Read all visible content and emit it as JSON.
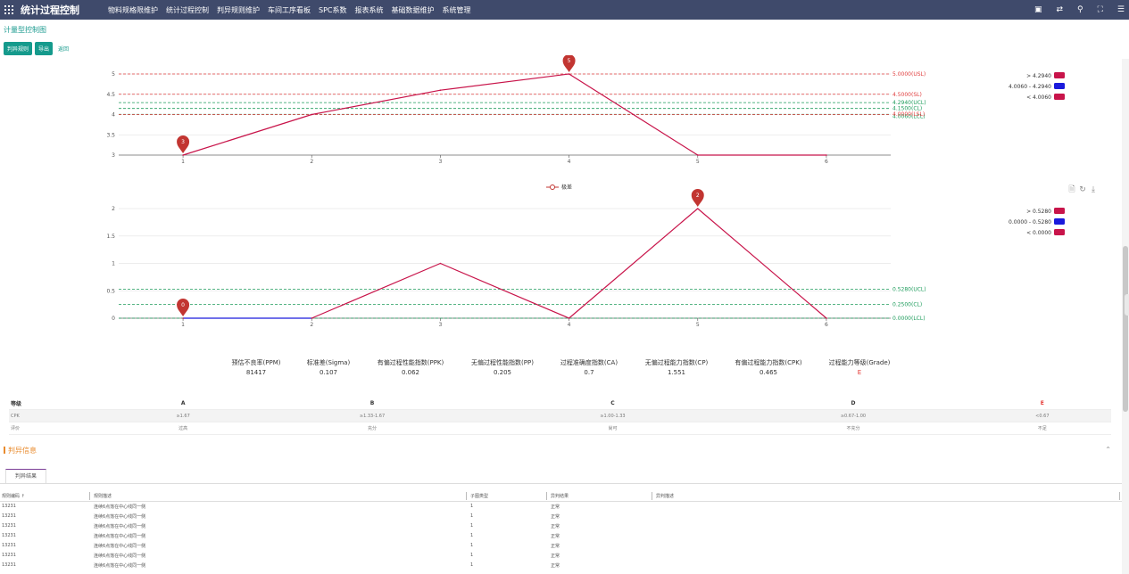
{
  "header": {
    "app_title": "统计过程控制",
    "menu": [
      "物料规格限维护",
      "统计过程控制",
      "判异规则维护",
      "车间工序看板",
      "SPC系数",
      "报表系统",
      "基础数据维护",
      "系统管理"
    ],
    "icons": [
      "layout-icon",
      "swap-icon",
      "search-icon",
      "fullscreen-icon",
      "menu-icon"
    ]
  },
  "page": {
    "title": "计量型控制图",
    "buttons": [
      "判异规则",
      "导出"
    ],
    "back_label": "返回"
  },
  "chart_data": [
    {
      "type": "line",
      "x": [
        1,
        2,
        3,
        4,
        5,
        6
      ],
      "y": [
        3,
        4,
        4.6,
        5,
        3,
        3
      ],
      "ylim": [
        3,
        5
      ],
      "yticks": [
        3,
        3.5,
        4,
        4.5,
        5
      ],
      "reference_lines": [
        {
          "label": "5.0000(USL)",
          "value": 5.0,
          "color": "#e03e3e"
        },
        {
          "label": "4.5000(SL)",
          "value": 4.5,
          "color": "#e03e3e"
        },
        {
          "label": "4.2940(UCL)",
          "value": 4.294,
          "color": "#1e9c5c"
        },
        {
          "label": "4.1500(CL)",
          "value": 4.15,
          "color": "#1e9c5c"
        },
        {
          "label": "4.0060(LCL)",
          "value": 4.006,
          "color": "#1e9c5c"
        },
        {
          "label": "4.0000(LSL)",
          "value": 4.0,
          "color": "#e03e3e"
        }
      ],
      "markers": [
        {
          "x": 1,
          "label": "3"
        },
        {
          "x": 4,
          "label": "5"
        }
      ],
      "legend": [
        {
          "label": "> 4.2940",
          "color": "#c8144a"
        },
        {
          "label": "4.0060 - 4.2940",
          "color": "#1a1adc"
        },
        {
          "label": "< 4.0060",
          "color": "#c8144a"
        }
      ]
    },
    {
      "type": "line",
      "series_name": "极差",
      "x": [
        1,
        2,
        3,
        4,
        5,
        6
      ],
      "y": [
        0,
        0,
        1,
        0,
        2,
        0
      ],
      "ylim": [
        0,
        2
      ],
      "yticks": [
        0,
        0.5,
        1,
        1.5,
        2
      ],
      "reference_lines": [
        {
          "label": "0.5280(UCL)",
          "value": 0.528,
          "color": "#1e9c5c"
        },
        {
          "label": "0.2500(CL)",
          "value": 0.25,
          "color": "#1e9c5c"
        },
        {
          "label": "0.0000(LCL)",
          "value": 0.0,
          "color": "#1e9c5c"
        }
      ],
      "markers": [
        {
          "x": 1,
          "label": "0"
        },
        {
          "x": 5,
          "label": "2"
        }
      ],
      "legend": [
        {
          "label": "> 0.5280",
          "color": "#c8144a"
        },
        {
          "label": "0.0000 - 0.5280",
          "color": "#1a1adc"
        },
        {
          "label": "< 0.0000",
          "color": "#c8144a"
        }
      ],
      "toolbox": [
        "data-view-icon",
        "refresh-icon",
        "download-icon"
      ]
    }
  ],
  "stats": [
    {
      "label": "预估不良率(PPM)",
      "value": "81417"
    },
    {
      "label": "标准差(Sigma)",
      "value": "0.107"
    },
    {
      "label": "有偏过程性能指数(PPK)",
      "value": "0.062"
    },
    {
      "label": "无偏过程性能指数(PP)",
      "value": "0.205"
    },
    {
      "label": "过程准确度指数(CA)",
      "value": "0.7"
    },
    {
      "label": "无偏过程能力指数(CP)",
      "value": "1.551"
    },
    {
      "label": "有偏过程能力指数(CPK)",
      "value": "0.465"
    },
    {
      "label": "过程能力等级(Grade)",
      "value": "E"
    }
  ],
  "grade_table": {
    "header": [
      "等级",
      "A",
      "B",
      "C",
      "D",
      "E"
    ],
    "rows": [
      [
        "CPK",
        "≥1.67",
        "≥1.33-1.67",
        "≥1.00-1.33",
        "≥0.67-1.00",
        "<0.67"
      ],
      [
        "评价",
        "过高",
        "充分",
        "尚可",
        "不充分",
        "不足"
      ]
    ]
  },
  "info": {
    "title": "判异信息",
    "tab": "判异结果",
    "columns": [
      "规则编码 ↑",
      "规则描述",
      "子图类型",
      "异判结果",
      "异判描述"
    ],
    "rows": [
      [
        "13231",
        "连续6点落在中心线同一侧",
        "1",
        "正常",
        ""
      ],
      [
        "13231",
        "连续6点落在中心线同一侧",
        "1",
        "正常",
        ""
      ],
      [
        "13231",
        "连续6点落在中心线同一侧",
        "1",
        "正常",
        ""
      ],
      [
        "13231",
        "连续6点落在中心线同一侧",
        "1",
        "正常",
        ""
      ],
      [
        "13231",
        "连续6点落在中心线同一侧",
        "1",
        "正常",
        ""
      ],
      [
        "13231",
        "连续6点落在中心线同一侧",
        "1",
        "正常",
        ""
      ],
      [
        "13231",
        "连续6点落在中心线同一侧",
        "1",
        "正常",
        ""
      ]
    ]
  }
}
